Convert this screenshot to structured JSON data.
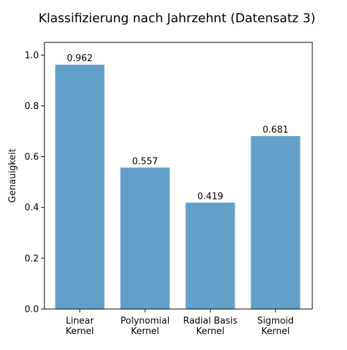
{
  "chart_data": {
    "type": "bar",
    "title": "Klassifizierung nach Jahrzehnt (Datensatz 3)",
    "xlabel": "",
    "ylabel": "Genauigkeit",
    "categories": [
      "Linear\nKernel",
      "Polynomial\nKernel",
      "Radial Basis\nKernel",
      "Sigmoid\nKernel"
    ],
    "values": [
      0.962,
      0.557,
      0.419,
      0.681
    ],
    "value_labels": [
      "0.962",
      "0.557",
      "0.419",
      "0.681"
    ],
    "ylim": [
      0,
      1.05
    ],
    "yticks": [
      0.0,
      0.2,
      0.4,
      0.6,
      0.8,
      1.0
    ],
    "ytick_labels": [
      "0.0",
      "0.2",
      "0.4",
      "0.6",
      "0.8",
      "1.0"
    ],
    "grid": false,
    "bar_color": "#62a0ca"
  }
}
